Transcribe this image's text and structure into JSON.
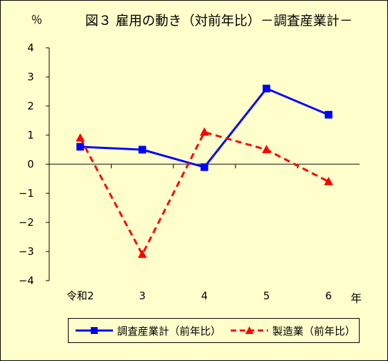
{
  "chart_data": {
    "type": "line",
    "title": "図３ 雇用の動き（対前年比）－調査産業計－",
    "ylabel": "％",
    "xunit": "年",
    "categories": [
      "令和2",
      "3",
      "4",
      "5",
      "6"
    ],
    "ylim": [
      -4,
      4
    ],
    "yticks": [
      4,
      3,
      2,
      1,
      0,
      -1,
      -2,
      -3,
      -4
    ],
    "ytick_labels": [
      "4",
      "3",
      "2",
      "1",
      "0",
      "−1",
      "−2",
      "−3",
      "−4"
    ],
    "series": [
      {
        "name": "調査産業計（前年比）",
        "values": [
          0.6,
          0.5,
          -0.1,
          2.6,
          1.7
        ],
        "color": "#0000ff",
        "marker": "square",
        "dash": "solid"
      },
      {
        "name": "製造業（前年比）",
        "values": [
          0.9,
          -3.1,
          1.1,
          0.5,
          -0.6
        ],
        "color": "#ff0000",
        "marker": "triangle",
        "dash": "dashed"
      }
    ],
    "legend": "bottom",
    "grid": false
  }
}
